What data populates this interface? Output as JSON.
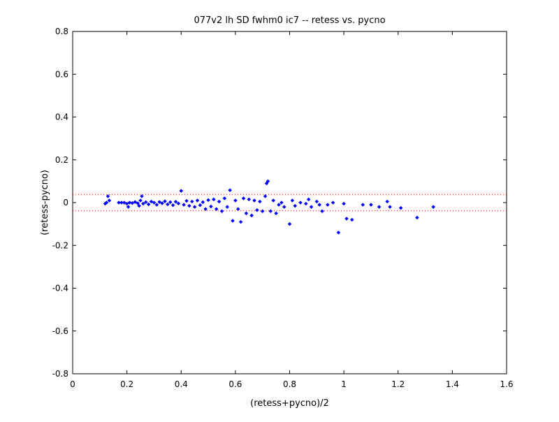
{
  "chart_data": {
    "type": "scatter",
    "title": "077v2 lh SD fwhm0 ic7 -- retess vs. pycno",
    "xlabel": "(retess+pycno)/2",
    "ylabel": "(retess-pycno)",
    "xlim": [
      0,
      1.6
    ],
    "ylim": [
      -0.8,
      0.8
    ],
    "xticks": [
      0,
      0.2,
      0.4,
      0.6,
      0.8,
      1,
      1.2,
      1.4,
      1.6
    ],
    "yticks": [
      -0.8,
      -0.6,
      -0.4,
      -0.2,
      0,
      0.2,
      0.4,
      0.6,
      0.8
    ],
    "xtick_labels": [
      "0",
      "0.2",
      "0.4",
      "0.6",
      "0.8",
      "1",
      "1.2",
      "1.4",
      "1.6"
    ],
    "ytick_labels": [
      "-0.8",
      "-0.6",
      "-0.4",
      "-0.2",
      "0",
      "0.2",
      "0.4",
      "0.6",
      "0.8"
    ],
    "grid": false,
    "marker_color": "#0000ff",
    "reference_line_color": "#ff0000",
    "reference_lines": [
      0.038,
      -0.038
    ],
    "series": [
      {
        "points": [
          [
            0.12,
            -0.005
          ],
          [
            0.125,
            0.0
          ],
          [
            0.13,
            0.03
          ],
          [
            0.135,
            0.01
          ],
          [
            0.17,
            0.0
          ],
          [
            0.18,
            0.0
          ],
          [
            0.19,
            0.0
          ],
          [
            0.2,
            -0.005
          ],
          [
            0.205,
            -0.02
          ],
          [
            0.21,
            0.0
          ],
          [
            0.22,
            -0.002
          ],
          [
            0.23,
            0.003
          ],
          [
            0.24,
            -0.003
          ],
          [
            0.245,
            -0.015
          ],
          [
            0.25,
            0.01
          ],
          [
            0.255,
            0.03
          ],
          [
            0.26,
            -0.005
          ],
          [
            0.27,
            0.002
          ],
          [
            0.28,
            -0.008
          ],
          [
            0.29,
            0.005
          ],
          [
            0.3,
            0.0
          ],
          [
            0.31,
            -0.01
          ],
          [
            0.32,
            0.003
          ],
          [
            0.33,
            -0.003
          ],
          [
            0.34,
            0.006
          ],
          [
            0.35,
            -0.008
          ],
          [
            0.36,
            0.002
          ],
          [
            0.37,
            -0.012
          ],
          [
            0.38,
            0.004
          ],
          [
            0.39,
            -0.004
          ],
          [
            0.4,
            0.055
          ],
          [
            0.41,
            -0.01
          ],
          [
            0.42,
            0.008
          ],
          [
            0.43,
            -0.015
          ],
          [
            0.44,
            0.005
          ],
          [
            0.45,
            -0.02
          ],
          [
            0.46,
            0.01
          ],
          [
            0.47,
            -0.012
          ],
          [
            0.48,
            0.002
          ],
          [
            0.49,
            -0.03
          ],
          [
            0.5,
            0.012
          ],
          [
            0.51,
            -0.018
          ],
          [
            0.52,
            0.015
          ],
          [
            0.53,
            -0.03
          ],
          [
            0.54,
            0.005
          ],
          [
            0.55,
            -0.04
          ],
          [
            0.56,
            0.02
          ],
          [
            0.57,
            -0.02
          ],
          [
            0.58,
            0.058
          ],
          [
            0.59,
            -0.085
          ],
          [
            0.6,
            0.01
          ],
          [
            0.61,
            -0.03
          ],
          [
            0.62,
            -0.09
          ],
          [
            0.63,
            0.02
          ],
          [
            0.64,
            -0.05
          ],
          [
            0.65,
            0.015
          ],
          [
            0.66,
            -0.06
          ],
          [
            0.67,
            0.01
          ],
          [
            0.68,
            -0.035
          ],
          [
            0.69,
            0.005
          ],
          [
            0.7,
            -0.04
          ],
          [
            0.71,
            0.03
          ],
          [
            0.715,
            0.09
          ],
          [
            0.72,
            0.1
          ],
          [
            0.73,
            -0.04
          ],
          [
            0.74,
            0.01
          ],
          [
            0.75,
            -0.05
          ],
          [
            0.76,
            -0.01
          ],
          [
            0.77,
            0.0
          ],
          [
            0.78,
            -0.02
          ],
          [
            0.8,
            -0.1
          ],
          [
            0.81,
            0.01
          ],
          [
            0.82,
            -0.015
          ],
          [
            0.84,
            0.0
          ],
          [
            0.86,
            -0.005
          ],
          [
            0.87,
            0.015
          ],
          [
            0.88,
            -0.02
          ],
          [
            0.9,
            0.005
          ],
          [
            0.91,
            -0.01
          ],
          [
            0.92,
            -0.04
          ],
          [
            0.94,
            -0.01
          ],
          [
            0.96,
            0.0
          ],
          [
            0.98,
            -0.14
          ],
          [
            1.0,
            -0.005
          ],
          [
            1.01,
            -0.075
          ],
          [
            1.03,
            -0.08
          ],
          [
            1.07,
            -0.01
          ],
          [
            1.1,
            -0.01
          ],
          [
            1.13,
            -0.02
          ],
          [
            1.16,
            0.005
          ],
          [
            1.17,
            -0.02
          ],
          [
            1.21,
            -0.025
          ],
          [
            1.27,
            -0.07
          ],
          [
            1.33,
            -0.02
          ]
        ]
      }
    ]
  }
}
